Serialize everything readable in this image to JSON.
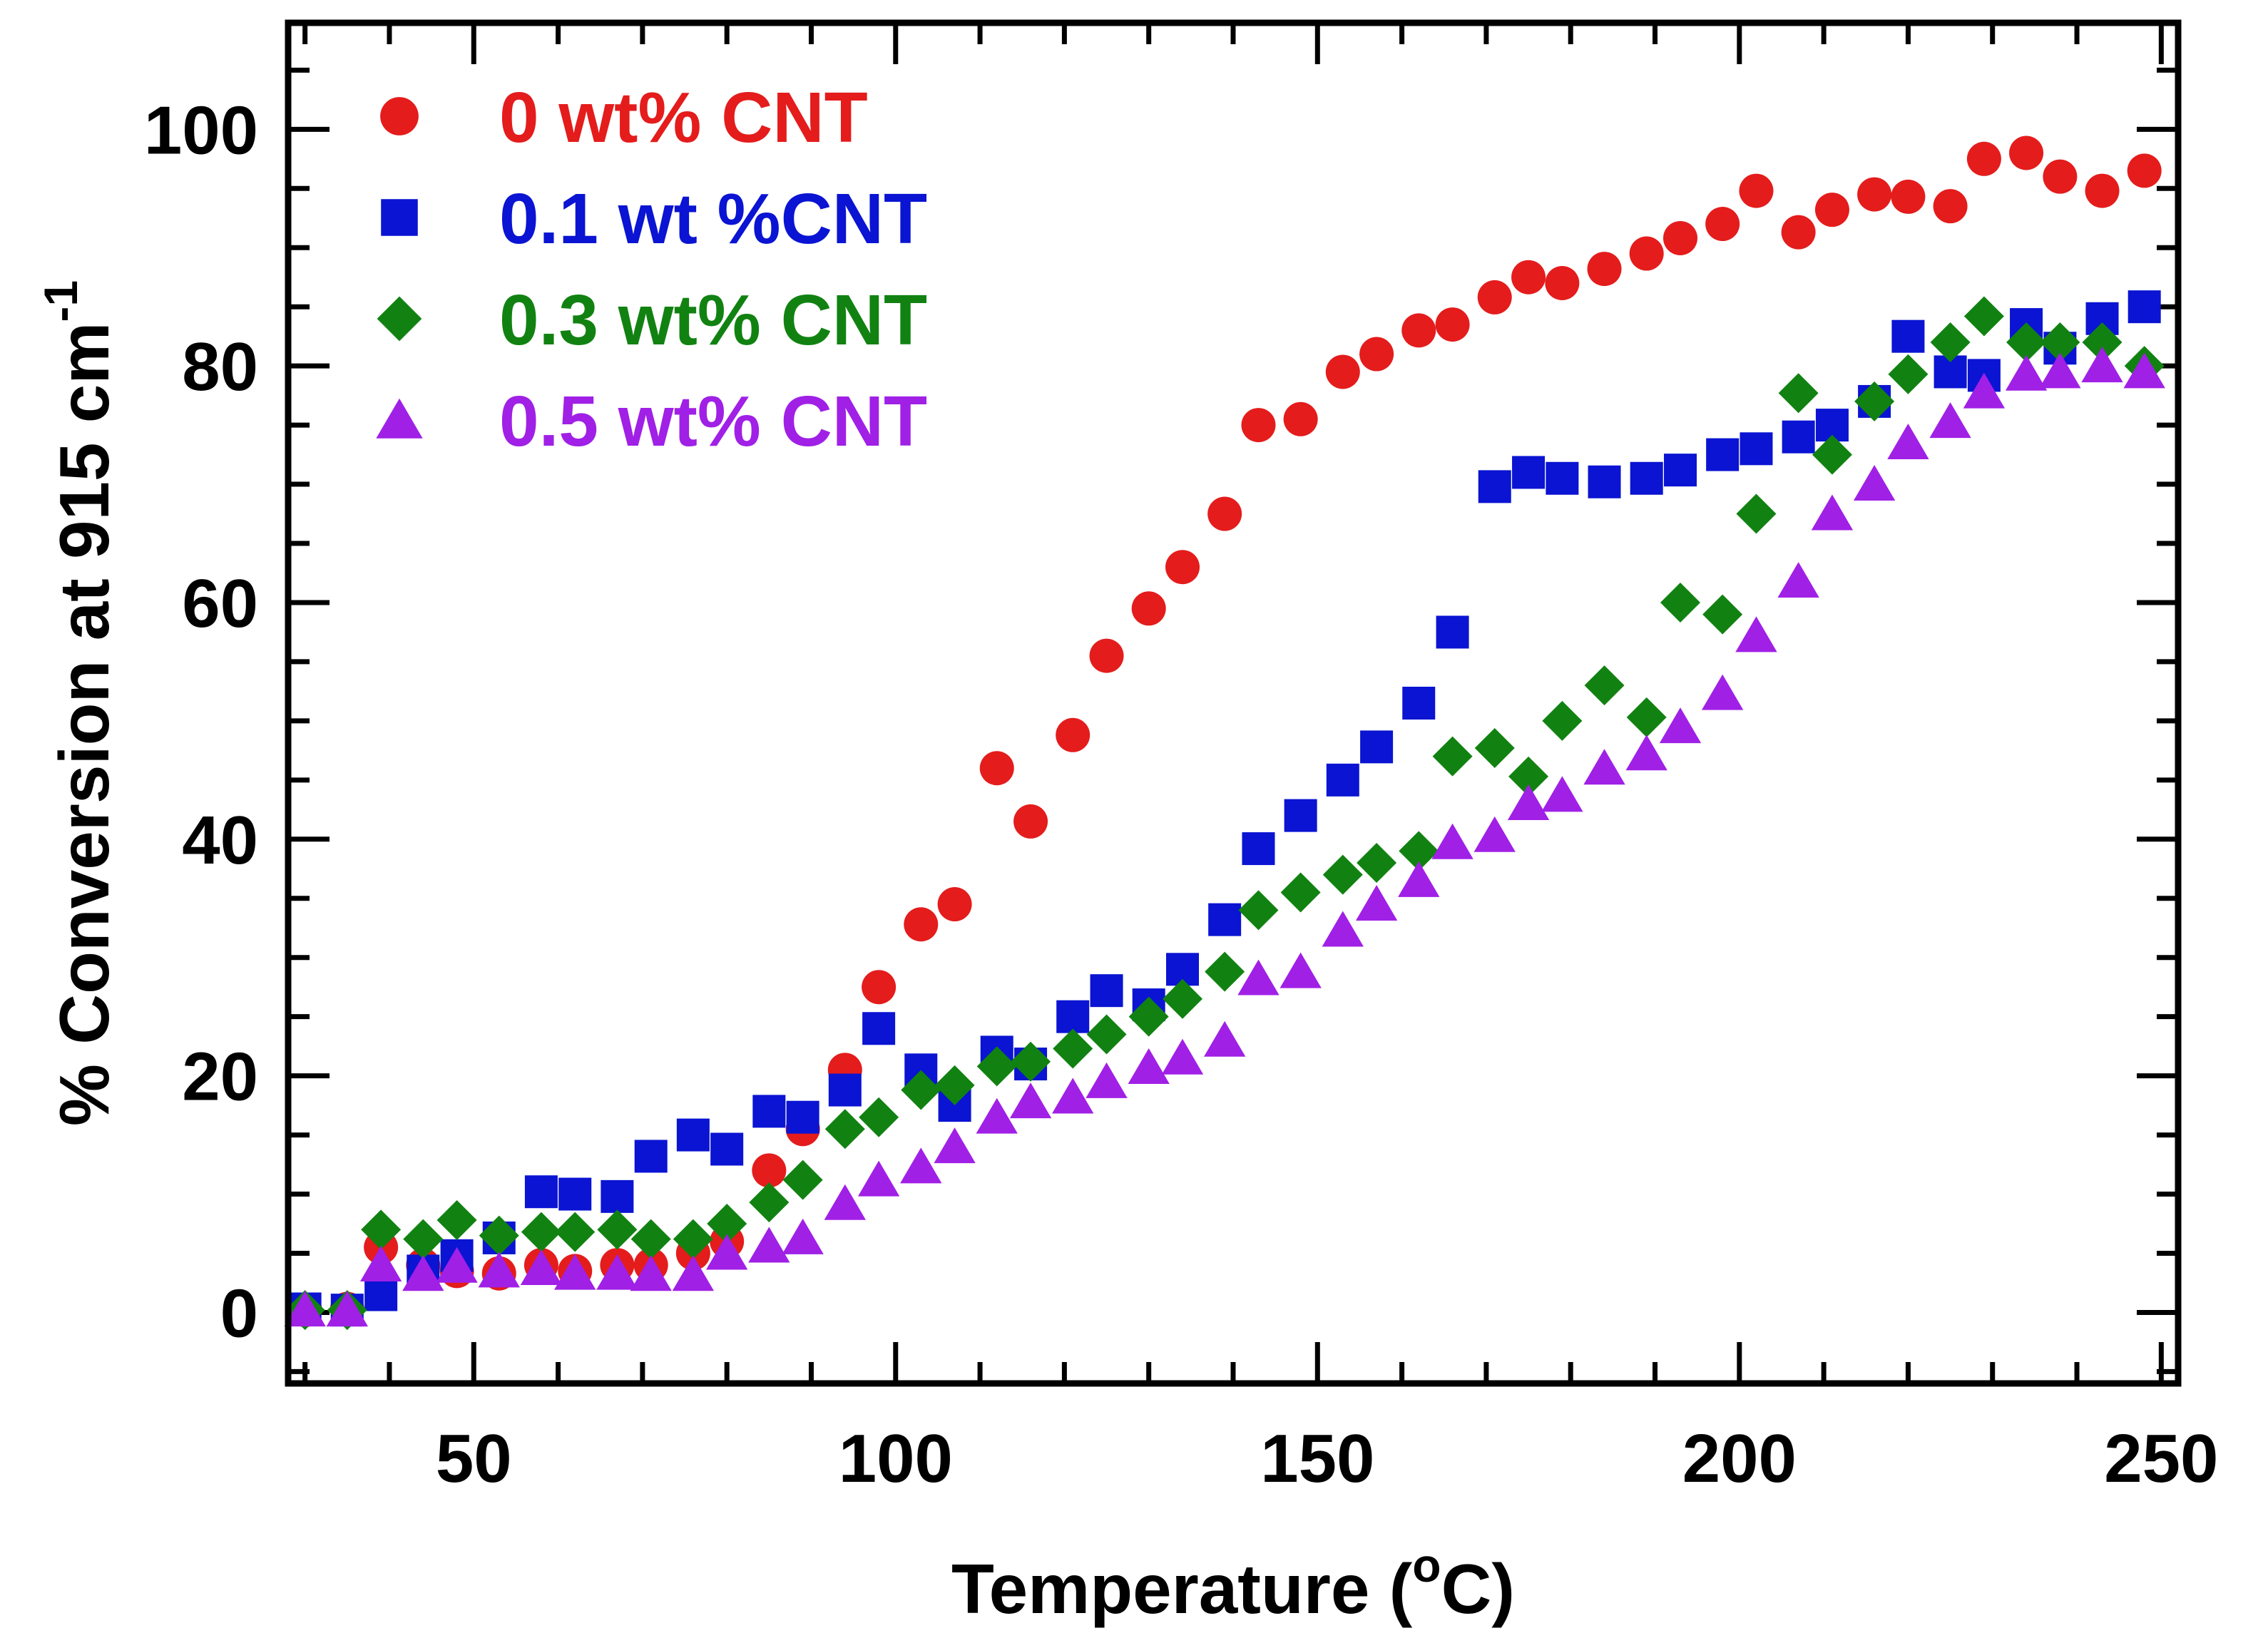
{
  "chart_data": {
    "type": "scatter",
    "xlabel": "Temperature (",
    "xlabel_super": "o",
    "xlabel_end": "C)",
    "ylabel": "% Conversion at 915 cm",
    "ylabel_super": "-1",
    "xlim": [
      28,
      252
    ],
    "ylim": [
      -6,
      109
    ],
    "xticks": [
      50,
      100,
      150,
      200,
      250
    ],
    "yticks": [
      0,
      20,
      40,
      60,
      80,
      100
    ],
    "xtick_labels": [
      "50",
      "100",
      "150",
      "200",
      "250"
    ],
    "ytick_labels": [
      "0",
      "20",
      "40",
      "60",
      "80",
      "100"
    ],
    "grid": false,
    "legend_position": "top-left",
    "series": [
      {
        "name": "0 wt% CNT",
        "color": "#e41c1c",
        "marker": "circle",
        "x": [
          30,
          35,
          39,
          44,
          48,
          53,
          58,
          62,
          67,
          71,
          76,
          80,
          85,
          89,
          94,
          98,
          103,
          107,
          112,
          116,
          121,
          125,
          130,
          134,
          139,
          143,
          148,
          153,
          157,
          162,
          166,
          171,
          175,
          179,
          184,
          189,
          193,
          198,
          202,
          207,
          211,
          216,
          220,
          225,
          229,
          234,
          238,
          243,
          248
        ],
        "y": [
          0.2,
          0.3,
          5.5,
          4,
          3.5,
          3.3,
          4,
          3.5,
          4,
          4,
          5,
          6,
          12,
          15.5,
          20.5,
          27.5,
          32.8,
          34.5,
          46,
          41.5,
          48.8,
          55.5,
          59.5,
          63,
          67.5,
          75,
          75.5,
          79.5,
          81,
          83,
          83.5,
          85.8,
          87.5,
          87,
          88.2,
          89.5,
          90.8,
          92,
          94.8,
          91.3,
          93.2,
          94.5,
          94.3,
          93.5,
          97.5,
          98,
          96,
          94.8,
          96.5
        ]
      },
      {
        "name": "0.1 wt %CNT",
        "color": "#0a14d2",
        "marker": "square",
        "x": [
          30,
          35,
          39,
          44,
          48,
          53,
          58,
          62,
          67,
          71,
          76,
          80,
          85,
          89,
          94,
          98,
          103,
          107,
          112,
          116,
          121,
          125,
          130,
          134,
          139,
          143,
          148,
          153,
          157,
          162,
          166,
          171,
          175,
          179,
          184,
          189,
          193,
          198,
          202,
          207,
          211,
          216,
          220,
          225,
          229,
          234,
          238,
          243,
          248
        ],
        "y": [
          0.3,
          0.2,
          1.5,
          3.5,
          4.8,
          6.3,
          10.2,
          10,
          9.8,
          13.2,
          15,
          13.8,
          17,
          16.5,
          18.8,
          24,
          20.5,
          17.5,
          22,
          21,
          25,
          27.2,
          26,
          29,
          33.2,
          39.2,
          42,
          45,
          47.8,
          51.5,
          57.5,
          69.8,
          71,
          70.5,
          70.2,
          70.5,
          71.2,
          72.5,
          73,
          74,
          75,
          77,
          82.5,
          79.5,
          79.2,
          83.5,
          81.5,
          84,
          85
        ]
      },
      {
        "name": "0.3 wt% CNT",
        "color": "#118211",
        "marker": "diamond",
        "x": [
          30,
          35,
          39,
          44,
          48,
          53,
          58,
          62,
          67,
          71,
          76,
          80,
          85,
          89,
          94,
          98,
          103,
          107,
          112,
          116,
          121,
          125,
          130,
          134,
          139,
          143,
          148,
          153,
          157,
          162,
          166,
          171,
          175,
          179,
          184,
          189,
          193,
          198,
          202,
          207,
          211,
          216,
          220,
          225,
          229,
          234,
          238,
          243,
          248
        ],
        "y": [
          0.2,
          0.2,
          7,
          6.2,
          7.8,
          6.5,
          6.8,
          6.8,
          7,
          6.2,
          6.2,
          7.5,
          9.3,
          11.2,
          15.5,
          16.5,
          18.8,
          19.2,
          20.8,
          21.2,
          22.3,
          23.5,
          25,
          26.5,
          28.8,
          34,
          35.5,
          37,
          38,
          39,
          47,
          47.7,
          45.3,
          50,
          53,
          50.3,
          60,
          59,
          67.5,
          77.7,
          72.5,
          77,
          79.3,
          82,
          84.2,
          82,
          82,
          82,
          80
        ]
      },
      {
        "name": "0.5 wt% CNT",
        "color": "#a020e6",
        "marker": "triangle",
        "x": [
          30,
          35,
          39,
          44,
          48,
          53,
          58,
          62,
          67,
          71,
          76,
          80,
          85,
          89,
          94,
          98,
          103,
          107,
          112,
          116,
          121,
          125,
          130,
          134,
          139,
          143,
          148,
          153,
          157,
          162,
          166,
          171,
          175,
          179,
          184,
          189,
          193,
          198,
          202,
          207,
          211,
          216,
          220,
          225,
          229,
          234,
          238,
          243,
          248
        ],
        "y": [
          0.2,
          0.2,
          4,
          3.2,
          3.9,
          3.5,
          3.7,
          3.3,
          3.3,
          3.2,
          3.2,
          5,
          5.6,
          6.3,
          9.2,
          11.2,
          12.3,
          14,
          16.5,
          17.8,
          18.2,
          19.5,
          20.7,
          21.5,
          23,
          28.2,
          28.8,
          32.3,
          34.5,
          36.5,
          39.7,
          40.3,
          43,
          43.7,
          46,
          47.2,
          49.5,
          52.3,
          57.2,
          61.8,
          67.5,
          70,
          73.5,
          75.3,
          77.8,
          79.3,
          79.5,
          80,
          79.5
        ]
      }
    ]
  }
}
